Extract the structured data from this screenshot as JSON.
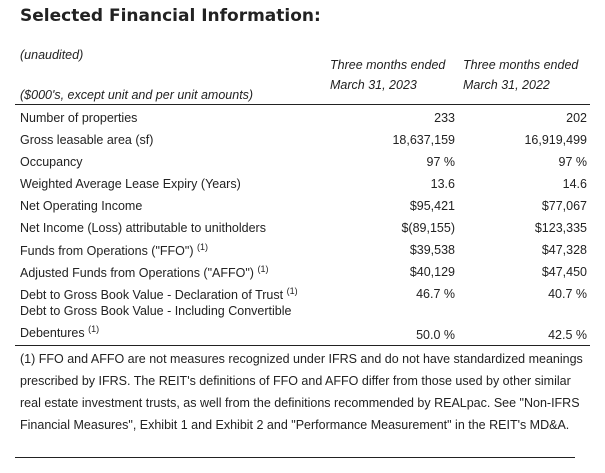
{
  "title": "Selected Financial Information:",
  "header": {
    "unaudited": "(unaudited)",
    "units": "($000's, except unit and per unit amounts)",
    "col1_line1": "Three months ended",
    "col1_line2": "March 31, 2023",
    "col2_line1": "Three months ended",
    "col2_line2": "March 31, 2022"
  },
  "rows": [
    {
      "label": "Number of properties",
      "sup": "",
      "v1": "233",
      "v2": "202"
    },
    {
      "label": "Gross leasable area (sf)",
      "sup": "",
      "v1": "18,637,159",
      "v2": "16,919,499"
    },
    {
      "label": "Occupancy",
      "sup": "",
      "v1": "97 %",
      "v2": "97 %"
    },
    {
      "label": "Weighted Average Lease Expiry (Years)",
      "sup": "",
      "v1": "13.6",
      "v2": "14.6"
    },
    {
      "label": "Net Operating Income",
      "sup": "",
      "v1": "$95,421",
      "v2": "$77,067"
    },
    {
      "label": "Net Income (Loss) attributable to unitholders",
      "sup": "",
      "v1": "$(89,155)",
      "v2": "$123,335"
    },
    {
      "label": "Funds from Operations (\"FFO\")",
      "sup": "(1)",
      "v1": "$39,538",
      "v2": "$47,328"
    },
    {
      "label": "Adjusted Funds from Operations (\"AFFO\")",
      "sup": "(1)",
      "v1": "$40,129",
      "v2": "$47,450"
    },
    {
      "label": "Debt to Gross Book Value - Declaration of Trust",
      "sup": "(1)",
      "v1": "46.7 %",
      "v2": "40.7 %"
    },
    {
      "label_line1": "Debt to Gross Book Value - Including Convertible",
      "label": "Debentures",
      "sup": "(1)",
      "v1": "50.0 %",
      "v2": "42.5 %"
    }
  ],
  "footnote": "(1) FFO and AFFO are not measures recognized under IFRS and do not have standardized meanings prescribed by IFRS. The REIT's definitions of FFO and AFFO differ from those used by other similar real estate investment trusts, as well from the definitions recommended by REALpac. See \"Non-IFRS Financial Measures\", Exhibit 1 and Exhibit 2 and \"Performance Measurement\" in the REIT's MD&A."
}
